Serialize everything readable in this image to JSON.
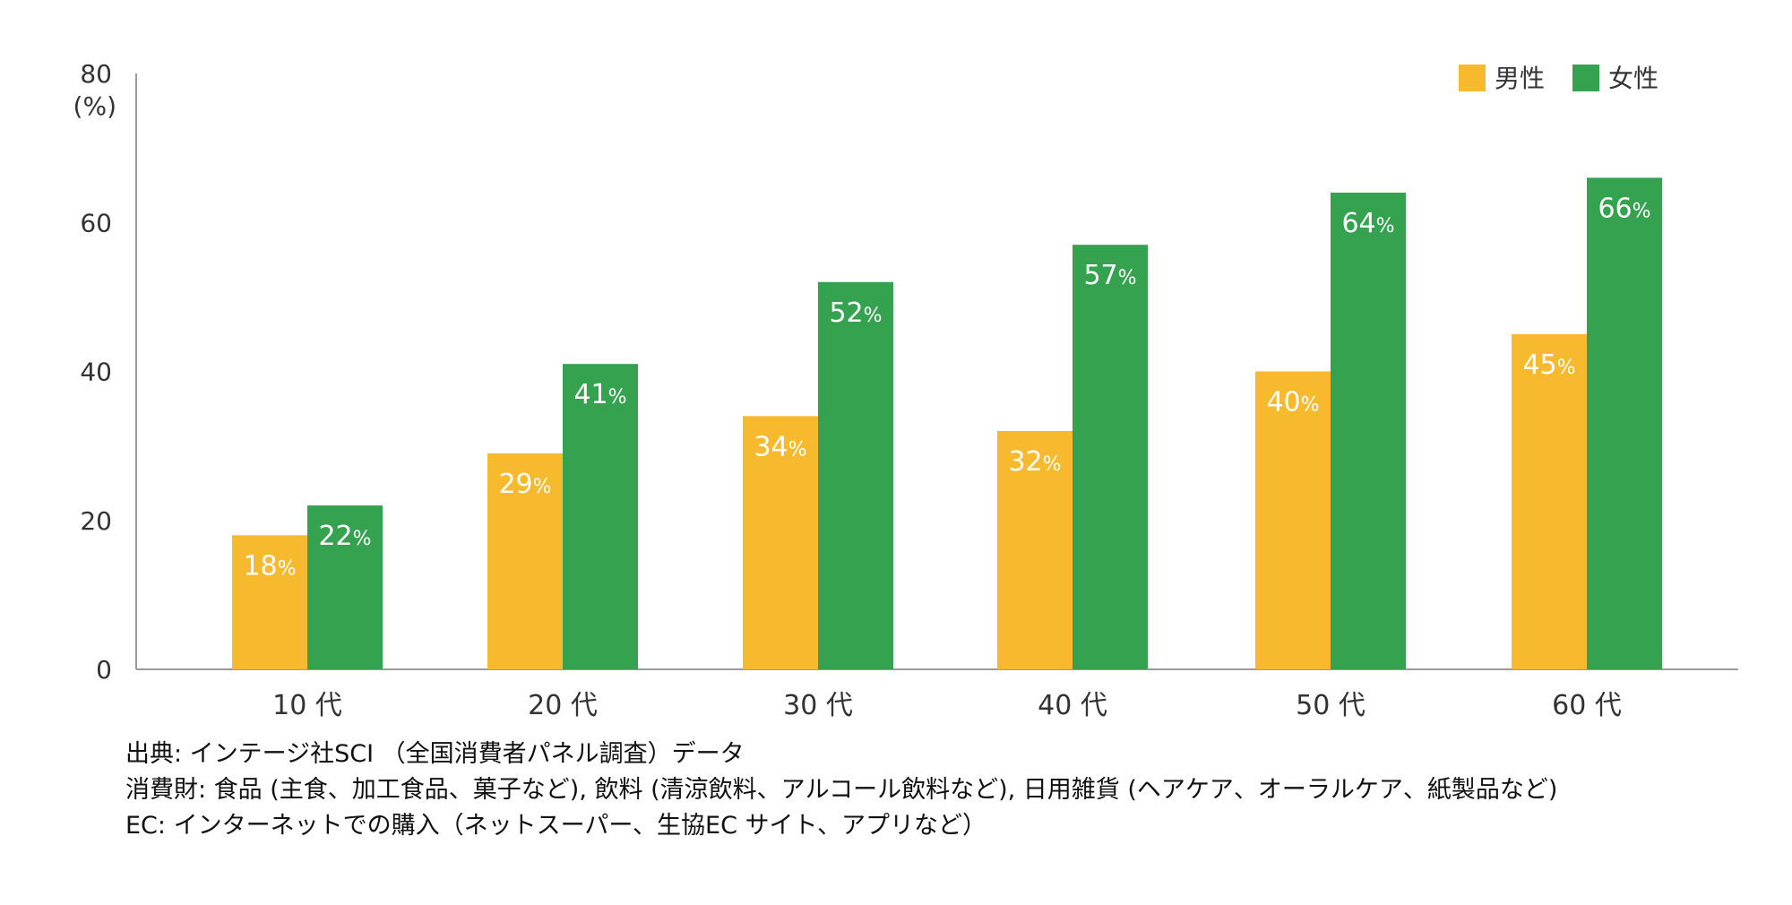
{
  "chart_data": {
    "type": "bar",
    "categories": [
      "10 代",
      "20 代",
      "30 代",
      "40 代",
      "50 代",
      "60 代"
    ],
    "series": [
      {
        "name": "男性",
        "values": [
          18,
          29,
          34,
          32,
          40,
          45
        ],
        "color": "#F7B92E"
      },
      {
        "name": "女性",
        "values": [
          22,
          41,
          52,
          57,
          64,
          66
        ],
        "color": "#35A24F"
      }
    ],
    "value_suffix": "%",
    "ylim": [
      0,
      80
    ],
    "yticks": [
      "0",
      "20",
      "40",
      "60",
      "80"
    ],
    "ylabel": "(%)",
    "legend": "top-right",
    "grid": false
  },
  "notes": [
    "出典: インテージ社SCI （全国消費者パネル調査）データ",
    "消費財: 食品 (主食、加工食品、菓子など), 飲料 (清涼飲料、アルコール飲料など), 日用雑貨 (ヘアケア、オーラルケア、紙製品など)",
    "EC: インターネットでの購入（ネットスーパー、生協EC サイト、アプリなど）"
  ]
}
